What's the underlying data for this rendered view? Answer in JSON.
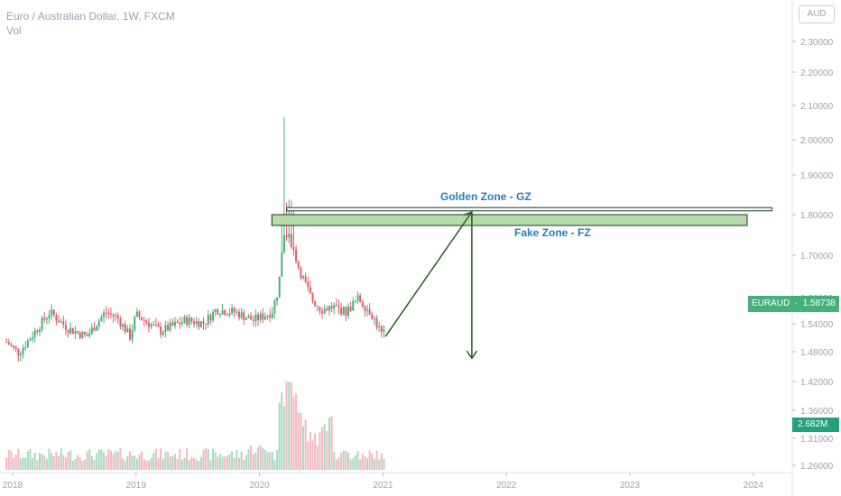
{
  "header": {
    "title": "Euro / Australian Dollar, 1W, FXCM",
    "indicator": "Vol"
  },
  "axis": {
    "currency_button": "AUD"
  },
  "price_label": {
    "symbol": "EURAUD",
    "value": "1.58738"
  },
  "volume_label": "2.682M",
  "annotations": {
    "golden_zone": "Golden Zone - GZ",
    "fake_zone": "Fake Zone - FZ"
  },
  "colors": {
    "up": "#46b07a",
    "down": "#e25c6c",
    "zone_fill": "#b6dcae",
    "zone_border": "#1c3a1c",
    "arrow": "#2a5a20",
    "zone_text": "#2b7bbf"
  },
  "chart_data": {
    "type": "candlestick",
    "title": "Euro / Australian Dollar, 1W, FXCM",
    "y_ticks": [
      "2.30000",
      "2.20000",
      "2.10000",
      "2.00000",
      "1.90000",
      "1.80000",
      "1.70000",
      "1.60000",
      "1.54000",
      "1.48000",
      "1.42000",
      "1.36000",
      "1.31000",
      "1.26000"
    ],
    "x_ticks": [
      "2018",
      "2019",
      "2020",
      "2021",
      "2022",
      "2023",
      "2024"
    ],
    "price_keypoints": [
      {
        "t": 2017.95,
        "v": 1.565
      },
      {
        "t": 2018.05,
        "v": 1.545
      },
      {
        "t": 2018.15,
        "v": 1.575
      },
      {
        "t": 2018.3,
        "v": 1.62
      },
      {
        "t": 2018.45,
        "v": 1.59
      },
      {
        "t": 2018.6,
        "v": 1.575
      },
      {
        "t": 2018.75,
        "v": 1.62
      },
      {
        "t": 2018.85,
        "v": 1.61
      },
      {
        "t": 2018.95,
        "v": 1.575
      },
      {
        "t": 2019.0,
        "v": 1.615
      },
      {
        "t": 2019.2,
        "v": 1.585
      },
      {
        "t": 2019.4,
        "v": 1.605
      },
      {
        "t": 2019.55,
        "v": 1.6
      },
      {
        "t": 2019.65,
        "v": 1.625
      },
      {
        "t": 2019.8,
        "v": 1.62
      },
      {
        "t": 2019.95,
        "v": 1.605
      },
      {
        "t": 2020.1,
        "v": 1.62
      },
      {
        "t": 2020.15,
        "v": 1.66
      },
      {
        "t": 2020.2,
        "v": 1.76
      },
      {
        "t": 2020.25,
        "v": 1.755
      },
      {
        "t": 2020.32,
        "v": 1.7
      },
      {
        "t": 2020.42,
        "v": 1.645
      },
      {
        "t": 2020.5,
        "v": 1.625
      },
      {
        "t": 2020.6,
        "v": 1.63
      },
      {
        "t": 2020.7,
        "v": 1.62
      },
      {
        "t": 2020.8,
        "v": 1.645
      },
      {
        "t": 2020.9,
        "v": 1.62
      },
      {
        "t": 2021.0,
        "v": 1.575
      },
      {
        "t": 2021.02,
        "v": 1.587
      }
    ],
    "spike": {
      "t": 2020.2,
      "high": 1.98
    },
    "volume_note": "weekly volume bars, peak around 2020.2",
    "last_price": 1.58738,
    "last_volume": "2.682M",
    "zones": [
      {
        "name": "Golden Zone - GZ",
        "from_t": 2020.22,
        "to_t": 2024.15,
        "low": 1.807,
        "high": 1.813
      },
      {
        "name": "Fake Zone - FZ",
        "from_t": 2020.1,
        "to_t": 2023.95,
        "low": 1.78,
        "high": 1.8
      }
    ],
    "arrows": [
      {
        "from": {
          "t": 2021.02,
          "v": 1.575
        },
        "to": {
          "t": 2021.72,
          "v": 1.805
        }
      },
      {
        "from": {
          "t": 2021.72,
          "v": 1.805
        },
        "to": {
          "t": 2021.72,
          "v": 1.535
        }
      }
    ]
  }
}
